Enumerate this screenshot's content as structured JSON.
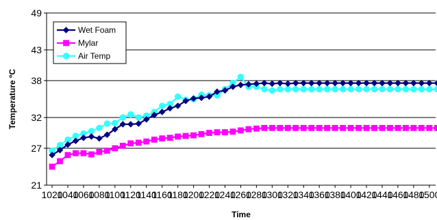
{
  "chart_data": {
    "type": "line",
    "title": "",
    "xlabel": "Time",
    "ylabel": "Temperature ºC",
    "xlim": [
      1013,
      1508
    ],
    "ylim": [
      21,
      49
    ],
    "xticks": [
      1020,
      1040,
      1060,
      1080,
      1100,
      1120,
      1140,
      1160,
      1180,
      1200,
      1220,
      1240,
      1260,
      1280,
      1300,
      1320,
      1340,
      1360,
      1380,
      1400,
      1420,
      1440,
      1460,
      1480,
      1500
    ],
    "xtick_labels": [
      "1020",
      "1040",
      "1060",
      "1080",
      "1100",
      "1120",
      "1140",
      "1160",
      "1180",
      "1200",
      "1220",
      "1240",
      "1260",
      "1280",
      "1300",
      "1320",
      "1340",
      "1360",
      "1380",
      "1400",
      "1420",
      "1440",
      "1460",
      "1480",
      "1500"
    ],
    "yticks": [
      21,
      27,
      32,
      38,
      43,
      49
    ],
    "ytick_labels": [
      "21",
      "27",
      "32",
      "38",
      "43",
      "49"
    ],
    "grid": "horizontal",
    "legend_position": "top-left",
    "x": [
      1020,
      1030,
      1040,
      1050,
      1060,
      1070,
      1080,
      1090,
      1100,
      1110,
      1120,
      1130,
      1140,
      1150,
      1160,
      1170,
      1180,
      1190,
      1200,
      1210,
      1220,
      1230,
      1240,
      1250,
      1260,
      1270,
      1280,
      1290,
      1300,
      1310,
      1320,
      1330,
      1340,
      1350,
      1360,
      1370,
      1380,
      1390,
      1400,
      1410,
      1420,
      1430,
      1440,
      1450,
      1460,
      1470,
      1480,
      1490,
      1500,
      1510
    ],
    "series": [
      {
        "name": "Wet Foam",
        "color": "#00007f",
        "marker": "diamond",
        "values": [
          25.9,
          26.7,
          27.6,
          28.2,
          28.7,
          28.9,
          28.6,
          29.2,
          30.1,
          30.9,
          30.9,
          31.0,
          31.7,
          32.4,
          32.9,
          33.5,
          33.9,
          34.7,
          35.1,
          35.2,
          35.4,
          36.2,
          36.4,
          37.0,
          37.3,
          37.4,
          37.5,
          37.6,
          37.5,
          37.6,
          37.5,
          37.6,
          37.6,
          37.6,
          37.6,
          37.6,
          37.6,
          37.6,
          37.6,
          37.6,
          37.6,
          37.6,
          37.6,
          37.6,
          37.6,
          37.6,
          37.6,
          37.6,
          37.6,
          37.6
        ]
      },
      {
        "name": "Mylar",
        "color": "#ff00ff",
        "marker": "square",
        "values": [
          24.0,
          24.9,
          25.9,
          26.2,
          26.2,
          26.0,
          26.4,
          26.6,
          27.0,
          27.4,
          27.8,
          27.9,
          28.1,
          28.4,
          28.6,
          28.7,
          28.9,
          29.0,
          29.1,
          29.3,
          29.5,
          29.6,
          29.6,
          29.7,
          29.9,
          30.1,
          30.2,
          30.3,
          30.3,
          30.3,
          30.3,
          30.3,
          30.3,
          30.3,
          30.3,
          30.3,
          30.3,
          30.3,
          30.3,
          30.3,
          30.3,
          30.3,
          30.3,
          30.3,
          30.3,
          30.3,
          30.3,
          30.3,
          30.3,
          30.3
        ]
      },
      {
        "name": "Air Temp",
        "color": "#33ffff",
        "marker": "circle",
        "values": [
          26.6,
          27.5,
          28.4,
          29.0,
          29.4,
          29.8,
          30.3,
          31.0,
          31.1,
          32.0,
          32.5,
          32.0,
          32.3,
          32.9,
          33.9,
          34.2,
          35.4,
          34.9,
          35.0,
          35.7,
          35.6,
          35.6,
          36.6,
          37.6,
          38.6,
          37.0,
          37.0,
          36.6,
          36.4,
          36.6,
          36.6,
          36.6,
          36.6,
          36.6,
          36.6,
          36.6,
          36.6,
          36.6,
          36.6,
          36.6,
          36.6,
          36.6,
          36.6,
          36.6,
          36.6,
          36.6,
          36.6,
          36.6,
          36.6,
          36.6
        ]
      }
    ]
  }
}
